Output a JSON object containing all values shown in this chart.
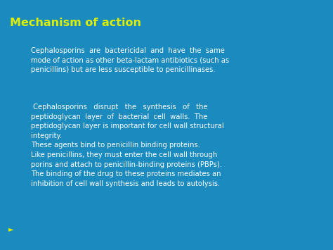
{
  "background_color": "#1a8abf",
  "title": "Mechanism of action",
  "title_color": "#ddee00",
  "title_fontsize": 11.5,
  "title_bold": true,
  "body_color": "#ffffff",
  "body_fontsize": 7.2,
  "paragraph1": "Cephalosporins  are  bactericidal  and  have  the  same\nmode of action as other beta-lactam antibiotics (such as\npenicillins) but are less susceptible to penicillinases.",
  "paragraph2": " Cephalosporins   disrupt   the   synthesis   of   the\npeptidoglycan  layer  of  bacterial  cell  walls.  The\npeptidoglycan layer is important for cell wall structural\nintegrity.\nThese agents bind to penicillin binding proteins.\nLike penicillins, they must enter the cell wall through\nporins and attach to penicillin-binding proteins (PBPs).\nThe binding of the drug to these proteins mediates an\ninhibition of cell wall synthesis and leads to autolysis.",
  "arrow_color": "#1a8abf",
  "arrow_marker": "►",
  "fig_width": 4.74,
  "fig_height": 3.55,
  "dpi": 100
}
